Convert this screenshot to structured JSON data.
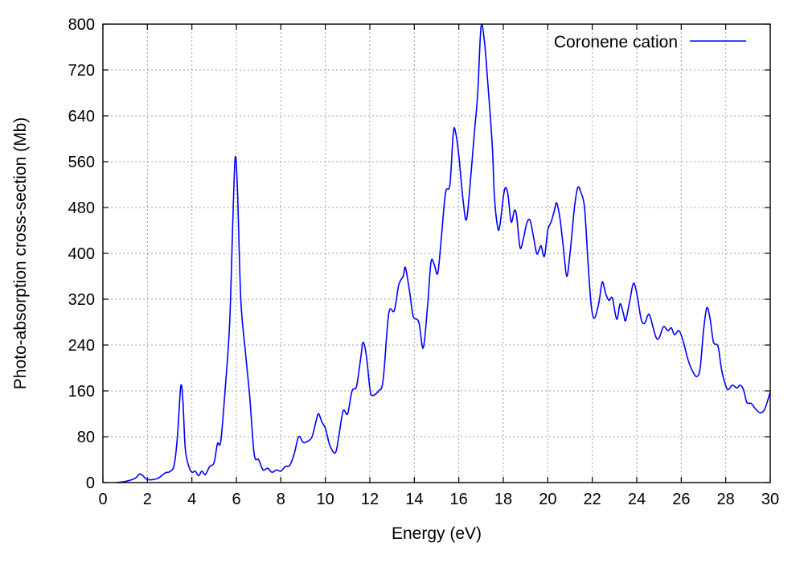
{
  "chart_data": {
    "type": "line",
    "title": "",
    "xlabel": "Energy (eV)",
    "ylabel": "Photo-absorption cross-section (Mb)",
    "xlim": [
      0,
      30
    ],
    "ylim": [
      0,
      800
    ],
    "xticks": [
      0,
      2,
      4,
      6,
      8,
      10,
      12,
      14,
      16,
      18,
      20,
      22,
      24,
      26,
      28,
      30
    ],
    "yticks": [
      0,
      80,
      160,
      240,
      320,
      400,
      480,
      560,
      640,
      720,
      800
    ],
    "grid": true,
    "legend_position": "top-right",
    "series": [
      {
        "name": "Coronene cation",
        "color": "#0000ff",
        "points": [
          [
            0.6,
            0
          ],
          [
            1.0,
            2
          ],
          [
            1.3,
            5
          ],
          [
            1.5,
            9
          ],
          [
            1.65,
            15
          ],
          [
            1.8,
            12
          ],
          [
            1.95,
            6
          ],
          [
            2.2,
            5
          ],
          [
            2.5,
            8
          ],
          [
            2.8,
            17
          ],
          [
            3.0,
            19
          ],
          [
            3.2,
            30
          ],
          [
            3.35,
            80
          ],
          [
            3.5,
            168
          ],
          [
            3.6,
            140
          ],
          [
            3.7,
            60
          ],
          [
            3.85,
            30
          ],
          [
            4.0,
            18
          ],
          [
            4.15,
            20
          ],
          [
            4.3,
            12
          ],
          [
            4.45,
            20
          ],
          [
            4.6,
            14
          ],
          [
            4.8,
            28
          ],
          [
            5.0,
            35
          ],
          [
            5.15,
            68
          ],
          [
            5.3,
            72
          ],
          [
            5.5,
            165
          ],
          [
            5.7,
            280
          ],
          [
            5.85,
            470
          ],
          [
            5.95,
            568
          ],
          [
            6.05,
            510
          ],
          [
            6.2,
            320
          ],
          [
            6.4,
            230
          ],
          [
            6.6,
            150
          ],
          [
            6.8,
            50
          ],
          [
            7.0,
            40
          ],
          [
            7.2,
            22
          ],
          [
            7.4,
            25
          ],
          [
            7.6,
            18
          ],
          [
            7.8,
            22
          ],
          [
            8.0,
            20
          ],
          [
            8.2,
            28
          ],
          [
            8.4,
            30
          ],
          [
            8.6,
            50
          ],
          [
            8.8,
            80
          ],
          [
            9.0,
            70
          ],
          [
            9.2,
            72
          ],
          [
            9.4,
            80
          ],
          [
            9.6,
            110
          ],
          [
            9.7,
            120
          ],
          [
            9.85,
            105
          ],
          [
            10.0,
            95
          ],
          [
            10.2,
            65
          ],
          [
            10.45,
            52
          ],
          [
            10.6,
            80
          ],
          [
            10.8,
            125
          ],
          [
            11.0,
            120
          ],
          [
            11.2,
            160
          ],
          [
            11.4,
            168
          ],
          [
            11.6,
            220
          ],
          [
            11.7,
            245
          ],
          [
            11.85,
            220
          ],
          [
            12.0,
            165
          ],
          [
            12.1,
            152
          ],
          [
            12.4,
            160
          ],
          [
            12.6,
            180
          ],
          [
            12.85,
            295
          ],
          [
            13.1,
            300
          ],
          [
            13.3,
            345
          ],
          [
            13.5,
            360
          ],
          [
            13.6,
            375
          ],
          [
            13.8,
            330
          ],
          [
            13.95,
            290
          ],
          [
            14.2,
            280
          ],
          [
            14.4,
            235
          ],
          [
            14.6,
            310
          ],
          [
            14.75,
            385
          ],
          [
            14.9,
            380
          ],
          [
            15.05,
            365
          ],
          [
            15.2,
            420
          ],
          [
            15.4,
            505
          ],
          [
            15.6,
            520
          ],
          [
            15.75,
            610
          ],
          [
            15.85,
            612
          ],
          [
            16.0,
            570
          ],
          [
            16.2,
            490
          ],
          [
            16.35,
            460
          ],
          [
            16.55,
            540
          ],
          [
            16.7,
            610
          ],
          [
            16.85,
            680
          ],
          [
            17.0,
            795
          ],
          [
            17.15,
            770
          ],
          [
            17.3,
            700
          ],
          [
            17.5,
            590
          ],
          [
            17.6,
            500
          ],
          [
            17.75,
            445
          ],
          [
            17.85,
            450
          ],
          [
            18.05,
            510
          ],
          [
            18.2,
            505
          ],
          [
            18.35,
            455
          ],
          [
            18.5,
            475
          ],
          [
            18.6,
            465
          ],
          [
            18.75,
            410
          ],
          [
            18.9,
            425
          ],
          [
            19.05,
            452
          ],
          [
            19.2,
            458
          ],
          [
            19.35,
            430
          ],
          [
            19.5,
            400
          ],
          [
            19.6,
            405
          ],
          [
            19.7,
            413
          ],
          [
            19.85,
            395
          ],
          [
            20.0,
            440
          ],
          [
            20.15,
            455
          ],
          [
            20.3,
            475
          ],
          [
            20.4,
            488
          ],
          [
            20.55,
            460
          ],
          [
            20.7,
            410
          ],
          [
            20.85,
            360
          ],
          [
            21.0,
            400
          ],
          [
            21.2,
            480
          ],
          [
            21.35,
            515
          ],
          [
            21.5,
            505
          ],
          [
            21.65,
            480
          ],
          [
            21.8,
            390
          ],
          [
            21.95,
            310
          ],
          [
            22.1,
            287
          ],
          [
            22.3,
            315
          ],
          [
            22.45,
            350
          ],
          [
            22.6,
            330
          ],
          [
            22.75,
            318
          ],
          [
            22.9,
            322
          ],
          [
            23.1,
            285
          ],
          [
            23.25,
            312
          ],
          [
            23.4,
            295
          ],
          [
            23.5,
            283
          ],
          [
            23.7,
            320
          ],
          [
            23.85,
            348
          ],
          [
            24.0,
            330
          ],
          [
            24.2,
            285
          ],
          [
            24.35,
            278
          ],
          [
            24.5,
            292
          ],
          [
            24.6,
            290
          ],
          [
            24.85,
            255
          ],
          [
            25.0,
            252
          ],
          [
            25.2,
            272
          ],
          [
            25.4,
            265
          ],
          [
            25.55,
            270
          ],
          [
            25.7,
            258
          ],
          [
            25.9,
            265
          ],
          [
            26.1,
            245
          ],
          [
            26.3,
            215
          ],
          [
            26.5,
            195
          ],
          [
            26.7,
            185
          ],
          [
            26.85,
            200
          ],
          [
            27.0,
            265
          ],
          [
            27.15,
            305
          ],
          [
            27.3,
            285
          ],
          [
            27.45,
            245
          ],
          [
            27.65,
            238
          ],
          [
            27.8,
            200
          ],
          [
            27.95,
            175
          ],
          [
            28.1,
            162
          ],
          [
            28.3,
            170
          ],
          [
            28.5,
            165
          ],
          [
            28.65,
            170
          ],
          [
            28.8,
            162
          ],
          [
            28.95,
            140
          ],
          [
            29.15,
            138
          ],
          [
            29.35,
            128
          ],
          [
            29.55,
            122
          ],
          [
            29.75,
            128
          ],
          [
            30.0,
            158
          ]
        ]
      }
    ]
  }
}
